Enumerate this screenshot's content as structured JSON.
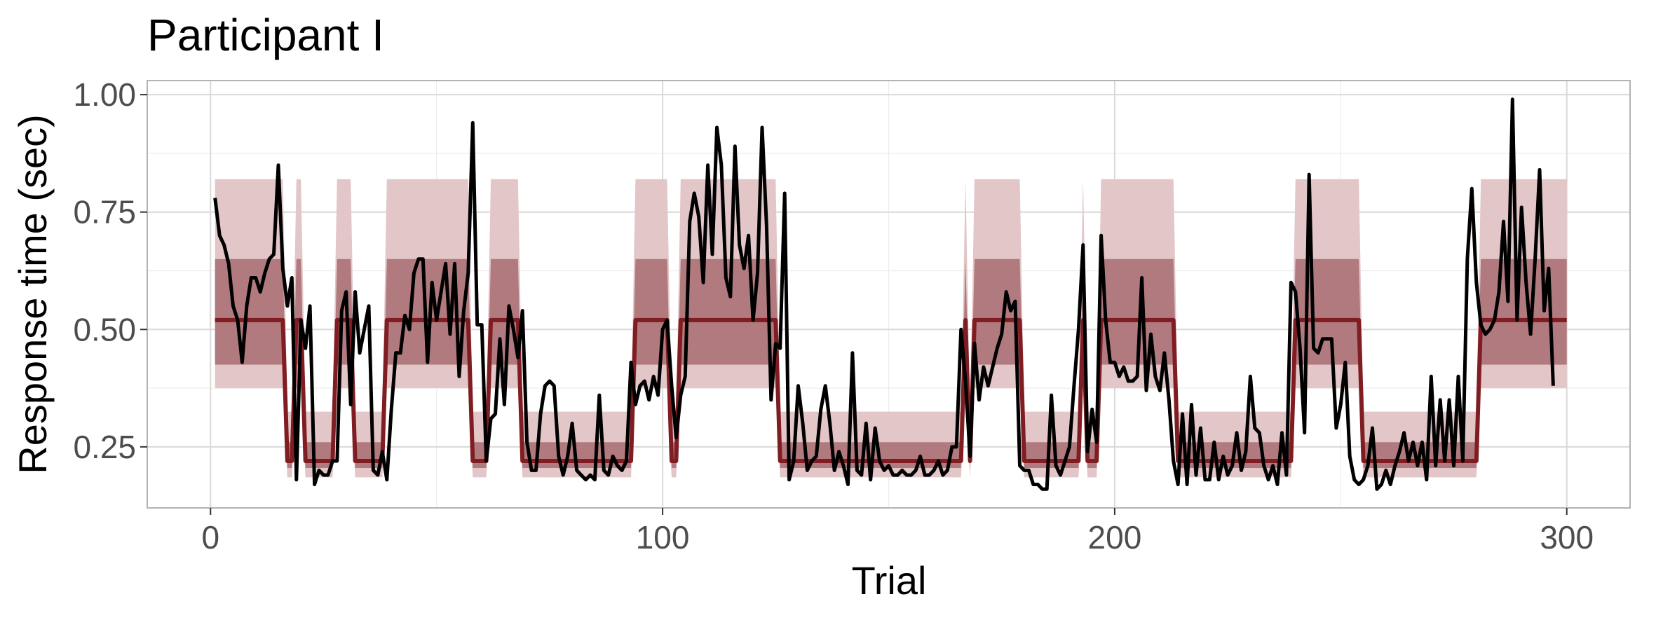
{
  "chart_data": {
    "type": "line",
    "title": "Participant I",
    "xlabel": "Trial",
    "ylabel": "Response time (sec)",
    "xlim": [
      -14,
      314
    ],
    "ylim": [
      0.12,
      1.03
    ],
    "x_ticks": [
      0,
      100,
      200,
      300
    ],
    "x_tick_labels": [
      "0",
      "100",
      "200",
      "300"
    ],
    "y_ticks": [
      0.25,
      0.5,
      0.75,
      1.0
    ],
    "y_tick_labels": [
      "0.25",
      "0.50",
      "0.75",
      "1.00"
    ],
    "grid": true,
    "legend": "none",
    "colors": {
      "observed": "#000000",
      "predicted_median": "#7f1d22",
      "band_inner": "#b07a7e",
      "band_outer": "#e2c6c8",
      "grid": "#d9d9d9",
      "panel_border": "#b3b3b3",
      "tick_text": "#4d4d4d"
    },
    "state_levels": {
      "slow": {
        "median": 0.52,
        "inner": [
          0.425,
          0.65
        ],
        "outer": [
          0.375,
          0.82
        ]
      },
      "fast": {
        "median": 0.22,
        "inner": [
          0.205,
          0.26
        ],
        "outer": [
          0.185,
          0.325
        ]
      }
    },
    "states": [
      {
        "start": 1,
        "end": 16,
        "level": "slow"
      },
      {
        "start": 17,
        "end": 18,
        "level": "fast"
      },
      {
        "start": 19,
        "end": 20,
        "level": "slow"
      },
      {
        "start": 21,
        "end": 27,
        "level": "fast"
      },
      {
        "start": 28,
        "end": 31,
        "level": "slow"
      },
      {
        "start": 32,
        "end": 38,
        "level": "fast"
      },
      {
        "start": 39,
        "end": 57,
        "level": "slow"
      },
      {
        "start": 58,
        "end": 61,
        "level": "fast"
      },
      {
        "start": 62,
        "end": 68,
        "level": "slow"
      },
      {
        "start": 69,
        "end": 93,
        "level": "fast"
      },
      {
        "start": 94,
        "end": 101,
        "level": "slow"
      },
      {
        "start": 102,
        "end": 103,
        "level": "fast"
      },
      {
        "start": 104,
        "end": 125,
        "level": "slow"
      },
      {
        "start": 126,
        "end": 166,
        "level": "fast"
      },
      {
        "start": 167,
        "end": 167,
        "level": "slow"
      },
      {
        "start": 168,
        "end": 168,
        "level": "fast"
      },
      {
        "start": 169,
        "end": 179,
        "level": "slow"
      },
      {
        "start": 180,
        "end": 192,
        "level": "fast"
      },
      {
        "start": 193,
        "end": 193,
        "level": "slow"
      },
      {
        "start": 194,
        "end": 196,
        "level": "fast"
      },
      {
        "start": 197,
        "end": 213,
        "level": "slow"
      },
      {
        "start": 214,
        "end": 239,
        "level": "fast"
      },
      {
        "start": 240,
        "end": 254,
        "level": "slow"
      },
      {
        "start": 255,
        "end": 280,
        "level": "fast"
      },
      {
        "start": 281,
        "end": 300,
        "level": "slow"
      }
    ],
    "series": [
      {
        "x_start": 1,
        "values": [
          0.78,
          0.7,
          0.68,
          0.64,
          0.55,
          0.52,
          0.43,
          0.55,
          0.61,
          0.61,
          0.58,
          0.62,
          0.65,
          0.66,
          0.85,
          0.63,
          0.55,
          0.61,
          0.18,
          0.52,
          0.46,
          0.55,
          0.17,
          0.2,
          0.19,
          0.19,
          0.22,
          0.22,
          0.54,
          0.58,
          0.34,
          0.58,
          0.45,
          0.5,
          0.55,
          0.2,
          0.19,
          0.24,
          0.18,
          0.33,
          0.45,
          0.45,
          0.53,
          0.5,
          0.62,
          0.65,
          0.65,
          0.43,
          0.6,
          0.52,
          0.58,
          0.64,
          0.49,
          0.64,
          0.4,
          0.54,
          0.62,
          0.94,
          0.51,
          0.51,
          0.22,
          0.31,
          0.32,
          0.48,
          0.34,
          0.55,
          0.5,
          0.44,
          0.54,
          0.26,
          0.2,
          0.2,
          0.32,
          0.38,
          0.39,
          0.38,
          0.23,
          0.19,
          0.23,
          0.3,
          0.2,
          0.19,
          0.18,
          0.19,
          0.18,
          0.36,
          0.2,
          0.19,
          0.23,
          0.21,
          0.2,
          0.22,
          0.43,
          0.34,
          0.38,
          0.39,
          0.35,
          0.4,
          0.36,
          0.5,
          0.52,
          0.38,
          0.27,
          0.36,
          0.4,
          0.73,
          0.79,
          0.74,
          0.6,
          0.85,
          0.66,
          0.93,
          0.85,
          0.61,
          0.57,
          0.89,
          0.68,
          0.63,
          0.7,
          0.52,
          0.62,
          0.93,
          0.72,
          0.35,
          0.47,
          0.46,
          0.79,
          0.18,
          0.22,
          0.38,
          0.3,
          0.2,
          0.22,
          0.23,
          0.33,
          0.38,
          0.3,
          0.2,
          0.24,
          0.21,
          0.17,
          0.45,
          0.2,
          0.19,
          0.3,
          0.18,
          0.29,
          0.22,
          0.2,
          0.21,
          0.19,
          0.19,
          0.2,
          0.19,
          0.19,
          0.2,
          0.23,
          0.19,
          0.19,
          0.2,
          0.22,
          0.19,
          0.2,
          0.25,
          0.25,
          0.5,
          0.39,
          0.23,
          0.47,
          0.35,
          0.42,
          0.38,
          0.42,
          0.46,
          0.49,
          0.58,
          0.54,
          0.56,
          0.21,
          0.2,
          0.2,
          0.17,
          0.17,
          0.16,
          0.16,
          0.36,
          0.21,
          0.19,
          0.22,
          0.25,
          0.38,
          0.5,
          0.68,
          0.24,
          0.33,
          0.26,
          0.7,
          0.52,
          0.43,
          0.43,
          0.4,
          0.42,
          0.39,
          0.39,
          0.4,
          0.61,
          0.37,
          0.49,
          0.4,
          0.37,
          0.45,
          0.35,
          0.22,
          0.17,
          0.32,
          0.17,
          0.34,
          0.19,
          0.29,
          0.18,
          0.18,
          0.26,
          0.18,
          0.23,
          0.19,
          0.21,
          0.28,
          0.2,
          0.24,
          0.4,
          0.29,
          0.28,
          0.21,
          0.18,
          0.21,
          0.17,
          0.28,
          0.19,
          0.6,
          0.58,
          0.46,
          0.28,
          0.83,
          0.46,
          0.45,
          0.48,
          0.48,
          0.48,
          0.29,
          0.34,
          0.43,
          0.23,
          0.18,
          0.17,
          0.18,
          0.21,
          0.29,
          0.16,
          0.17,
          0.2,
          0.17,
          0.21,
          0.24,
          0.28,
          0.22,
          0.26,
          0.21,
          0.26,
          0.18,
          0.4,
          0.21,
          0.35,
          0.22,
          0.35,
          0.21,
          0.4,
          0.22,
          0.65,
          0.8,
          0.6,
          0.51,
          0.49,
          0.5,
          0.52,
          0.58,
          0.73,
          0.56,
          0.99,
          0.52,
          0.76,
          0.6,
          0.49,
          0.65,
          0.84,
          0.54,
          0.63,
          0.38
        ]
      }
    ]
  }
}
